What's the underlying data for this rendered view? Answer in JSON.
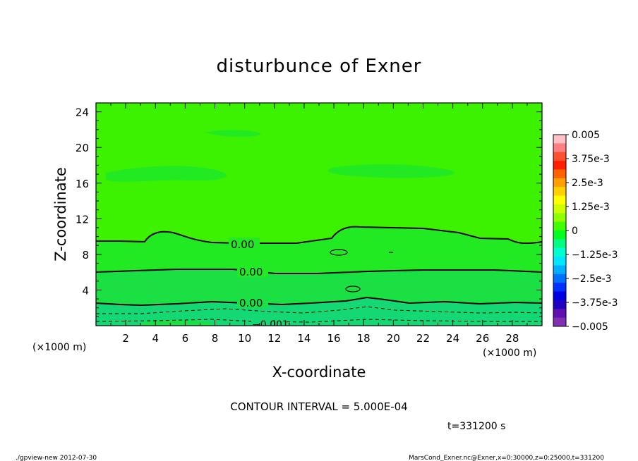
{
  "chart_data": {
    "type": "heatmap",
    "title": "disturbunce of Exner",
    "xlabel": "X-coordinate",
    "ylabel": "Z-coordinate",
    "x_unit": "(×1000 m)",
    "z_unit": "(×1000 m)",
    "xlim": [
      0,
      30
    ],
    "ylim": [
      0,
      25
    ],
    "x_ticks": [
      2,
      4,
      6,
      8,
      10,
      12,
      14,
      16,
      18,
      20,
      22,
      24,
      26,
      28
    ],
    "y_ticks": [
      4,
      8,
      12,
      16,
      20,
      24
    ],
    "colorbar": {
      "labels": [
        "0.005",
        "3.75e-3",
        "2.5e-3",
        "1.25e-3",
        "0",
        "−1.25e-3",
        "−2.5e-3",
        "−3.75e-3",
        "−0.005"
      ],
      "colors": [
        "#ffc0c8",
        "#ff8080",
        "#ff5030",
        "#ff2000",
        "#ff6000",
        "#ffa000",
        "#ffd000",
        "#ffff00",
        "#d0ff00",
        "#90ff00",
        "#40ff00",
        "#00ff20",
        "#00ff80",
        "#00ffd0",
        "#00e8ff",
        "#00b0ff",
        "#0070ff",
        "#0030ff",
        "#0000e0",
        "#2000c0",
        "#6010b0",
        "#8030b0"
      ]
    },
    "fill_colors": {
      "upper": "#3cf200",
      "middle": "#22ea22",
      "lower": "#1ae044",
      "bottom": "#14d874",
      "dark": "#2ade08"
    },
    "contour_labels": [
      "0.00",
      "0.00",
      "0.00",
      "−0.001"
    ],
    "contour_interval_text": "CONTOUR INTERVAL = 5.000E-04",
    "time_text": "t=331200 s"
  },
  "footer": {
    "left": "./gpview-new   2012-07-30",
    "right": "MarsCond_Exner.nc@Exner,x=0:30000,z=0:25000,t=331200"
  }
}
